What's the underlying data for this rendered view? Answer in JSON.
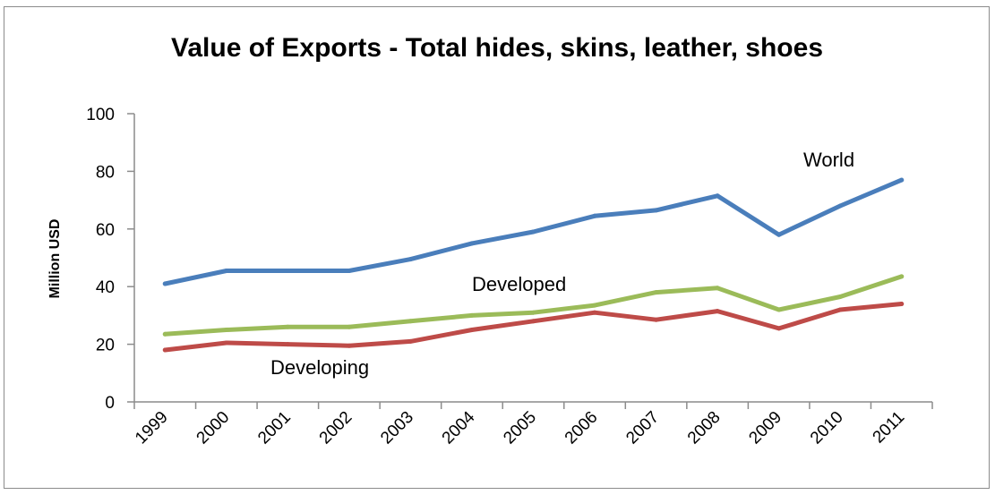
{
  "chart_data": {
    "type": "line",
    "title": "Value of Exports - Total hides, skins, leather, shoes",
    "xlabel": "",
    "ylabel": "Million USD",
    "ylim": [
      0,
      100
    ],
    "yticks": [
      "0",
      "20",
      "40",
      "60",
      "80",
      "100"
    ],
    "categories": [
      "1999",
      "2000",
      "2001",
      "2002",
      "2003",
      "2004",
      "2005",
      "2006",
      "2007",
      "2008",
      "2009",
      "2010",
      "2011"
    ],
    "grid": false,
    "legend": "none",
    "series": [
      {
        "name": "World",
        "color": "#4a7ebb",
        "values": [
          41,
          45.5,
          45.5,
          45.5,
          49.5,
          55,
          59,
          64.5,
          66.5,
          71.5,
          58,
          68,
          77
        ]
      },
      {
        "name": "Developed",
        "color": "#9bbb59",
        "values": [
          23.5,
          25,
          26,
          26,
          28,
          30,
          31,
          33.5,
          38,
          39.5,
          32,
          36.5,
          43.5
        ]
      },
      {
        "name": "Developing",
        "color": "#be4b48",
        "values": [
          18,
          20.5,
          20,
          19.5,
          21,
          25,
          28,
          31,
          28.5,
          31.5,
          25.5,
          32,
          34
        ]
      }
    ]
  }
}
